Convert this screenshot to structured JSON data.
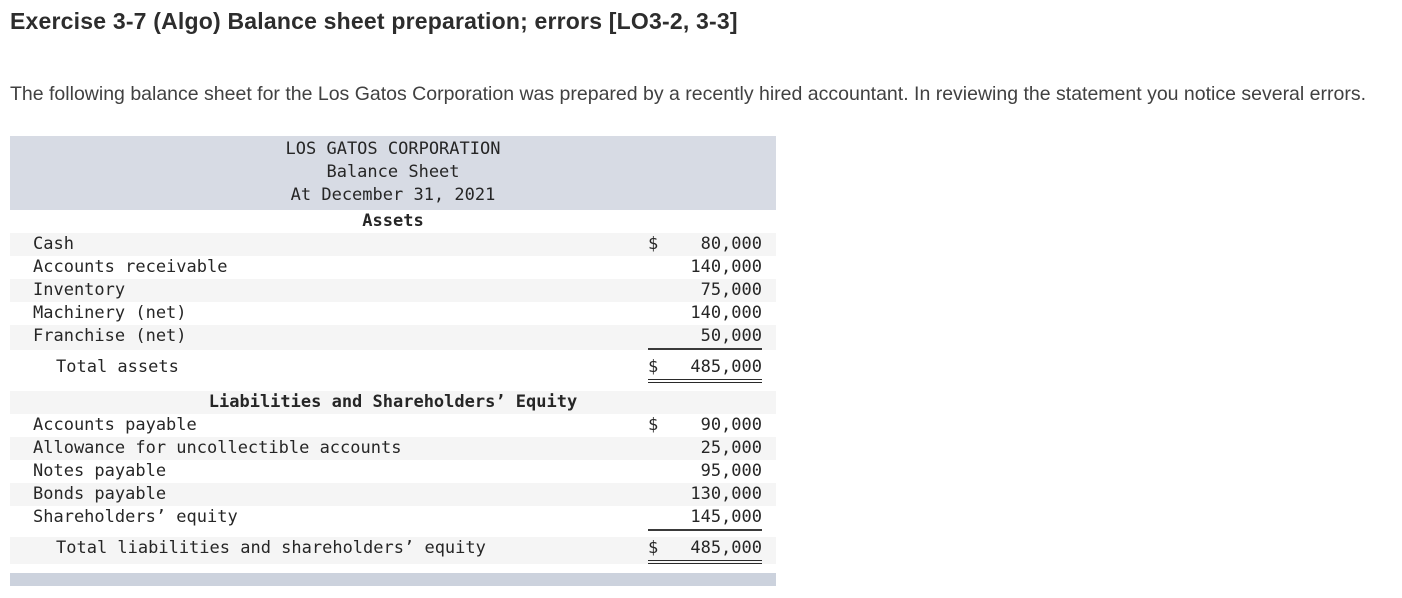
{
  "page": {
    "title": "Exercise 3-7 (Algo) Balance sheet preparation; errors [LO3-2, 3-3]",
    "intro": "The following balance sheet for the Los Gatos Corporation was prepared by a recently hired accountant. In reviewing the statement you notice several errors."
  },
  "balance_sheet": {
    "company": "LOS GATOS CORPORATION",
    "statement": "Balance Sheet",
    "date_line": "At December 31, 2021",
    "sections": [
      {
        "heading": "Assets",
        "rows": [
          {
            "label": "Cash",
            "currency": "$",
            "amount": "80,000"
          },
          {
            "label": "Accounts receivable",
            "currency": "",
            "amount": "140,000"
          },
          {
            "label": "Inventory",
            "currency": "",
            "amount": "75,000"
          },
          {
            "label": "Machinery (net)",
            "currency": "",
            "amount": "140,000"
          },
          {
            "label": "Franchise (net)",
            "currency": "",
            "amount": "50,000"
          }
        ],
        "total": {
          "label": "Total assets",
          "currency": "$",
          "amount": "485,000"
        }
      },
      {
        "heading": "Liabilities and Shareholders’ Equity",
        "rows": [
          {
            "label": "Accounts payable",
            "currency": "$",
            "amount": "90,000"
          },
          {
            "label": "Allowance for uncollectible accounts",
            "currency": "",
            "amount": "25,000"
          },
          {
            "label": "Notes payable",
            "currency": "",
            "amount": "95,000"
          },
          {
            "label": "Bonds payable",
            "currency": "",
            "amount": "130,000"
          },
          {
            "label": "Shareholders’ equity",
            "currency": "",
            "amount": "145,000"
          }
        ],
        "total": {
          "label": "Total liabilities and shareholders’ equity",
          "currency": "$",
          "amount": "485,000"
        }
      }
    ]
  },
  "colors": {
    "header_bg": "#d7dbe4",
    "stripe_bg": "#f5f5f5",
    "next_section_bar_bg": "#ccd2dd",
    "text": "#262626"
  }
}
